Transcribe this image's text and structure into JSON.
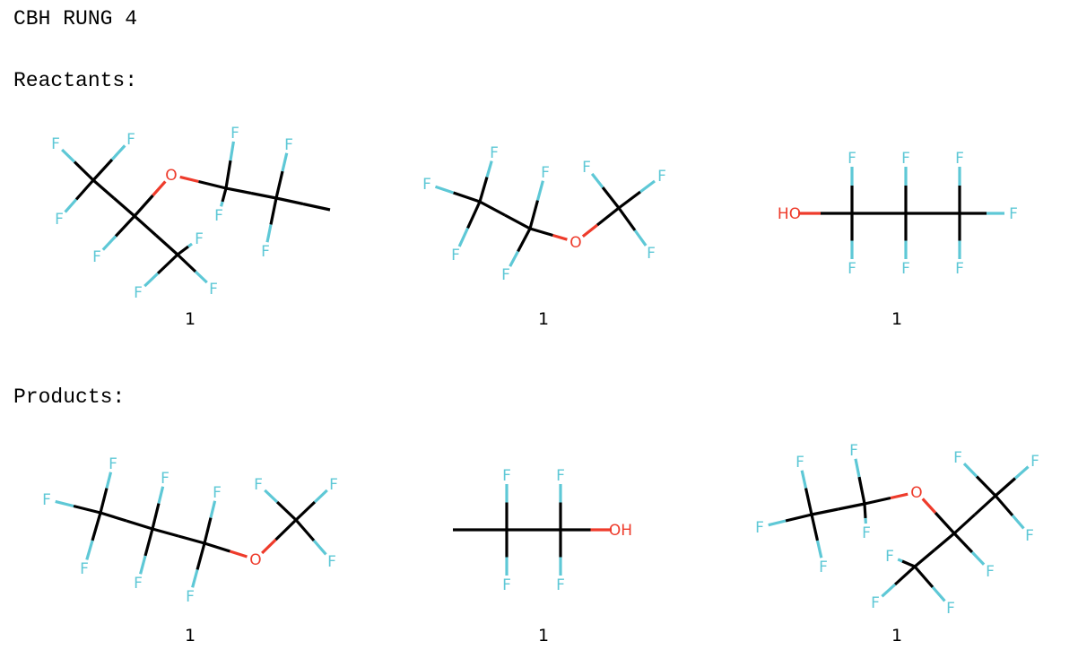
{
  "title": "CBH RUNG 4",
  "reactants_label": "Reactants:",
  "products_label": "Products:",
  "colors": {
    "bond": "#000000",
    "fluorine": "#5ec8d6",
    "oxygen": "#ee3b2b"
  },
  "atom_symbols": {
    "fluorine": "F",
    "oxygen": "O",
    "hydroxyl_right": "OH",
    "hydroxyl_left": "HO"
  },
  "reactants": [
    {
      "coefficient": "1"
    },
    {
      "coefficient": "1"
    },
    {
      "coefficient": "1"
    }
  ],
  "products": [
    {
      "coefficient": "1"
    },
    {
      "coefficient": "1"
    },
    {
      "coefficient": "1"
    }
  ]
}
